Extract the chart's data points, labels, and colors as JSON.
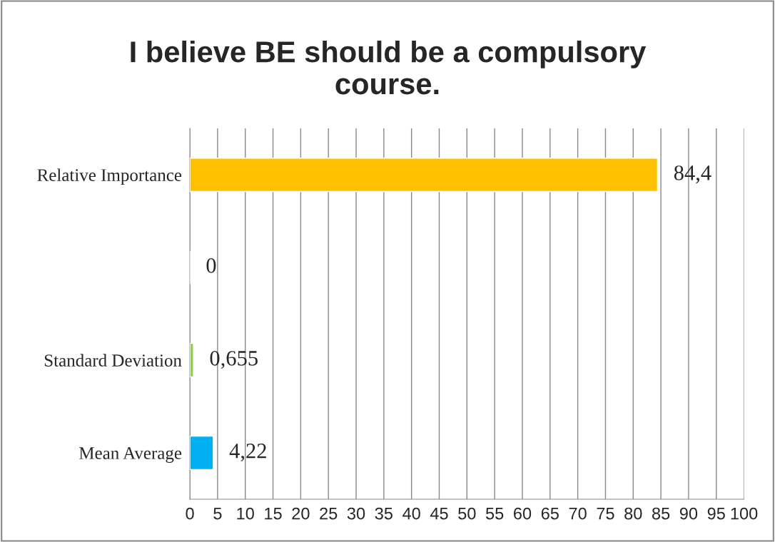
{
  "chart_data": {
    "type": "bar",
    "orientation": "horizontal",
    "title": "I believe BE should be a compulsory course.",
    "categories": [
      "Relative Importance",
      null,
      "Standard Deviation",
      "Mean Average"
    ],
    "values": [
      84.4,
      0,
      0.655,
      4.22
    ],
    "colors": [
      "#ffc000",
      "#ffffff",
      "#92d050",
      "#00b0f0"
    ],
    "value_labels": [
      "84,4",
      "0",
      "0,655",
      "4,22"
    ],
    "xlim": [
      0,
      100
    ],
    "xticks": [
      0,
      5,
      10,
      15,
      20,
      25,
      30,
      35,
      40,
      45,
      50,
      55,
      60,
      65,
      70,
      75,
      80,
      85,
      90,
      95,
      100
    ],
    "grid": "x",
    "legend": false
  }
}
